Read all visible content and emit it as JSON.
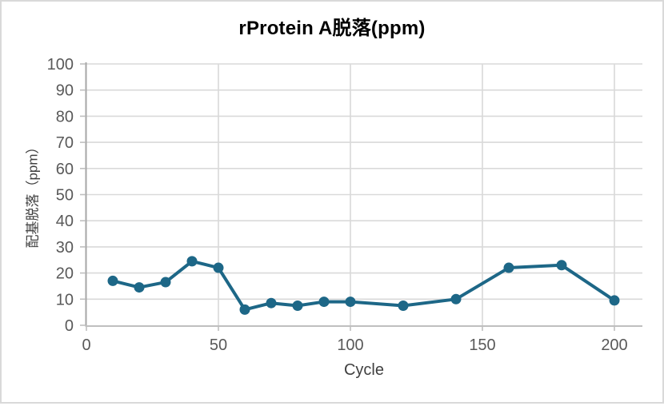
{
  "chart_data": {
    "type": "line",
    "title": "rProtein A脱落(ppm)",
    "xlabel": "Cycle",
    "ylabel": "配基脱落（ppm）",
    "x": [
      10,
      20,
      30,
      40,
      50,
      60,
      70,
      80,
      90,
      100,
      120,
      140,
      160,
      180,
      200
    ],
    "values": [
      17,
      14.5,
      16.5,
      24.5,
      22,
      6,
      8.5,
      7.5,
      9,
      9,
      7.5,
      10,
      22,
      23,
      9.5
    ],
    "xlim": [
      0,
      210
    ],
    "ylim": [
      0,
      100
    ],
    "x_ticks": [
      0,
      50,
      100,
      150,
      200
    ],
    "y_ticks": [
      0,
      10,
      20,
      30,
      40,
      50,
      60,
      70,
      80,
      90,
      100
    ],
    "grid": true,
    "legend": "none",
    "colors": {
      "line": "#1d6787",
      "marker": "#1d6787",
      "gridline": "#d9d9d9",
      "axis_line_left": "#a6a6a6",
      "axis_line_bottom": "#bfbfbf",
      "tick_label": "#595959",
      "axis_title": "#404040",
      "chart_title": "#000000",
      "frame_border": "#d9d9d9",
      "background": "#ffffff"
    }
  }
}
